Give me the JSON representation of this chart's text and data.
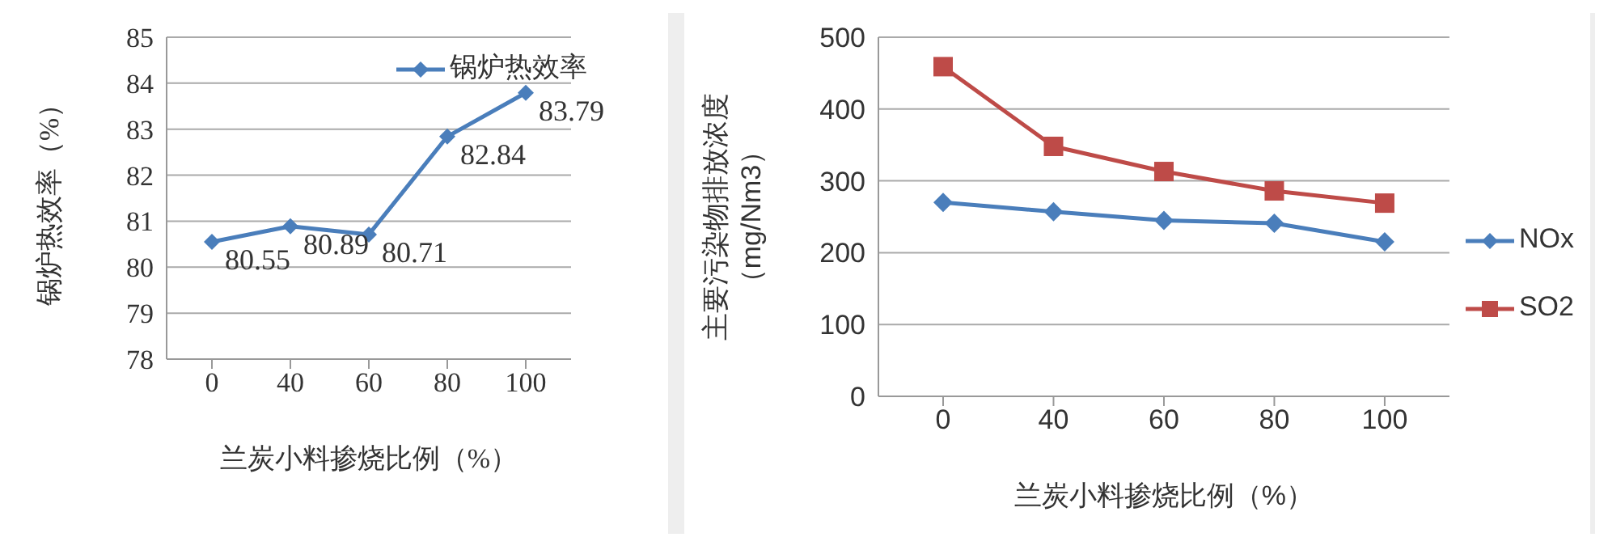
{
  "chart_data": [
    {
      "type": "line",
      "xlabel": "兰炭小料掺烧比例（%）",
      "ylabel": "锅炉热效率（%）",
      "categories": [
        "0",
        "40",
        "60",
        "80",
        "100"
      ],
      "series": [
        {
          "name": "锅炉热效率",
          "color": "#4a7ebb",
          "marker": "diamond",
          "values": [
            80.55,
            80.89,
            80.71,
            82.84,
            83.79
          ]
        }
      ],
      "ylim": [
        78,
        85
      ],
      "yticks": [
        78,
        79,
        80,
        81,
        82,
        83,
        84,
        85
      ],
      "grid": "y",
      "legend": "top right",
      "data_labels": true
    },
    {
      "type": "line",
      "xlabel": "兰炭小料掺烧比例（%）",
      "ylabel": "主要污染物排放浓度（mg/Nm3）",
      "categories": [
        "0",
        "40",
        "60",
        "80",
        "100"
      ],
      "series": [
        {
          "name": "NOx",
          "color": "#4a7ebb",
          "marker": "diamond",
          "values": [
            270,
            257,
            245,
            241,
            215
          ]
        },
        {
          "name": "SO2",
          "color": "#be4b48",
          "marker": "square",
          "values": [
            459,
            348,
            313,
            286,
            269
          ]
        }
      ],
      "ylim": [
        0,
        500
      ],
      "yticks": [
        0,
        100,
        200,
        300,
        400,
        500
      ],
      "grid": "y",
      "legend": "right"
    }
  ]
}
